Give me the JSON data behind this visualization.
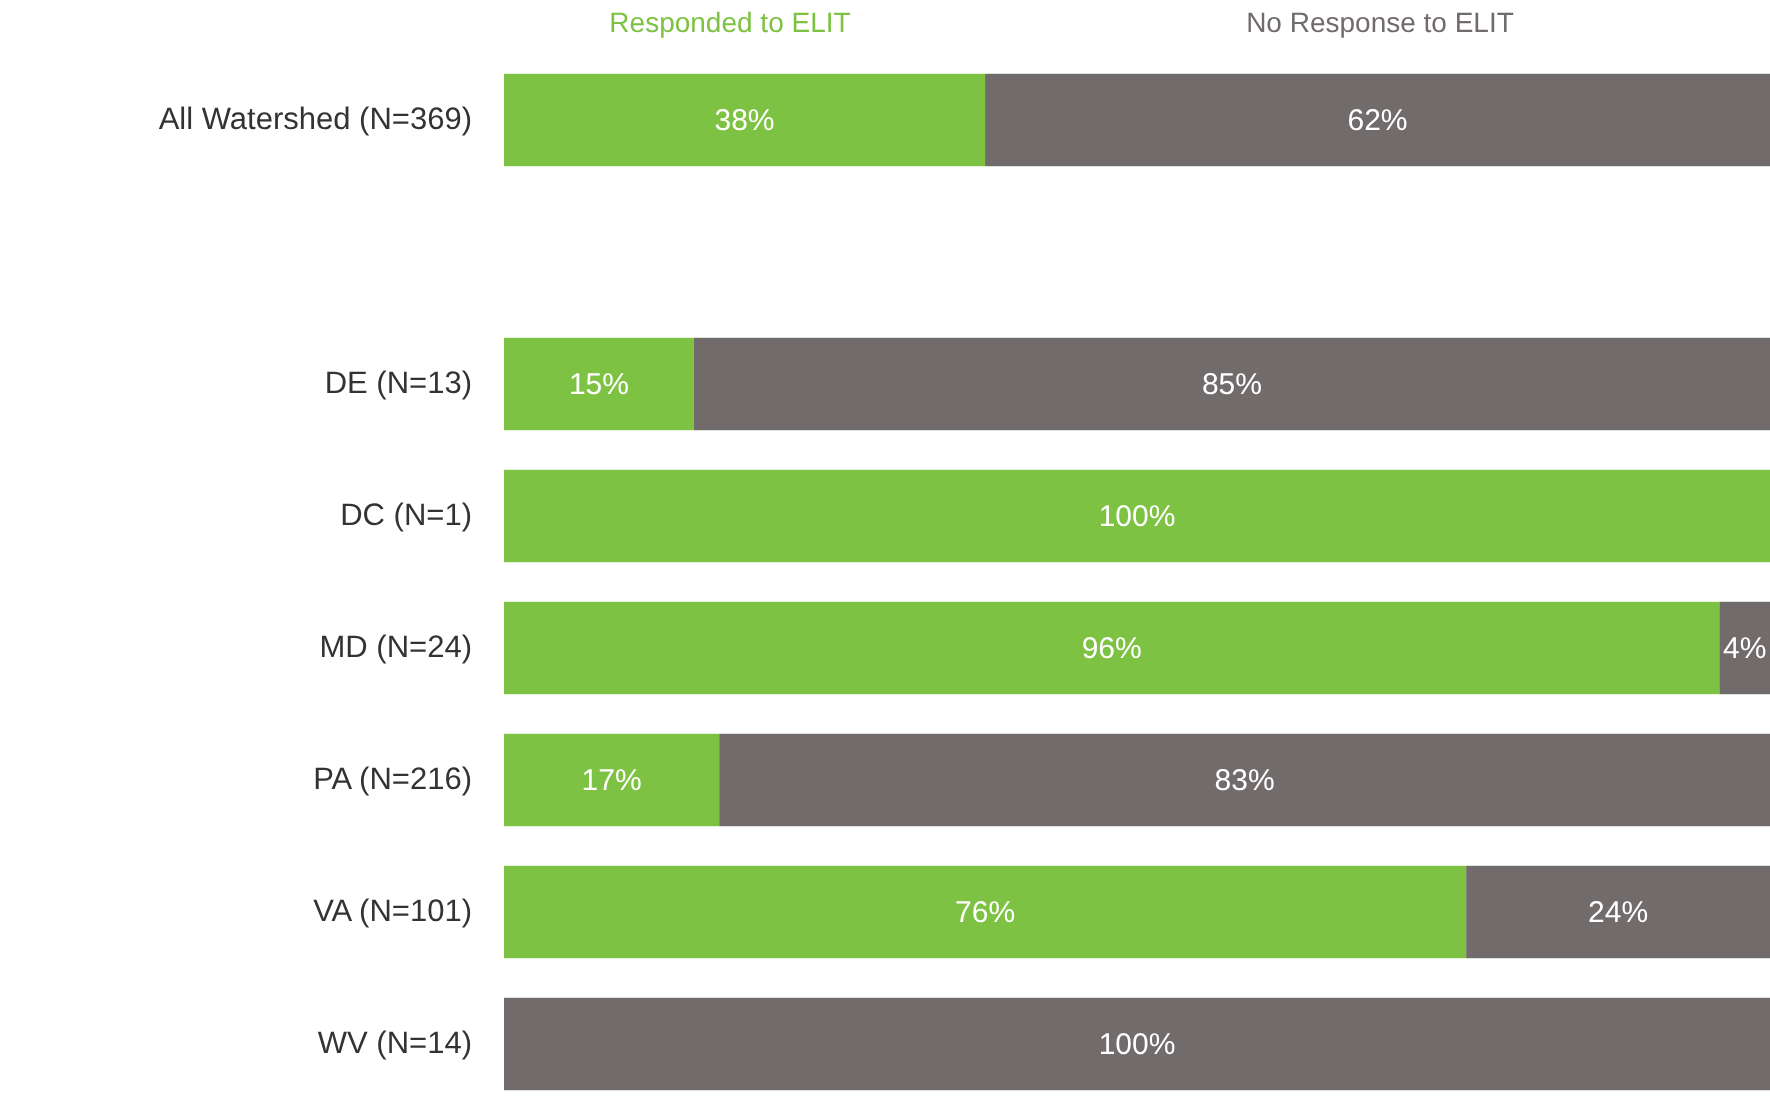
{
  "chart_data": {
    "type": "bar",
    "orientation": "horizontal",
    "stacked": true,
    "categories": [
      "All Watershed (N=369)",
      null,
      "DE (N=13)",
      "DC (N=1)",
      "MD (N=24)",
      "PA (N=216)",
      "VA (N=101)",
      "WV (N=14)"
    ],
    "series": [
      {
        "name": "Responded to ELIT",
        "color": "#7dc242",
        "values": [
          38,
          null,
          15,
          100,
          96,
          17,
          76,
          0
        ],
        "value_labels": [
          "38%",
          null,
          "15%",
          "100%",
          "96%",
          "17%",
          "76%",
          null
        ]
      },
      {
        "name": "No Response to ELIT",
        "color": "#716b6b",
        "values": [
          62,
          null,
          85,
          0,
          4,
          83,
          24,
          100
        ],
        "value_labels": [
          "62%",
          null,
          "85%",
          null,
          "4%",
          "83%",
          "24%",
          "100%"
        ]
      }
    ],
    "xlim": [
      0,
      100
    ],
    "tick_labels": "y",
    "legend": "top"
  }
}
